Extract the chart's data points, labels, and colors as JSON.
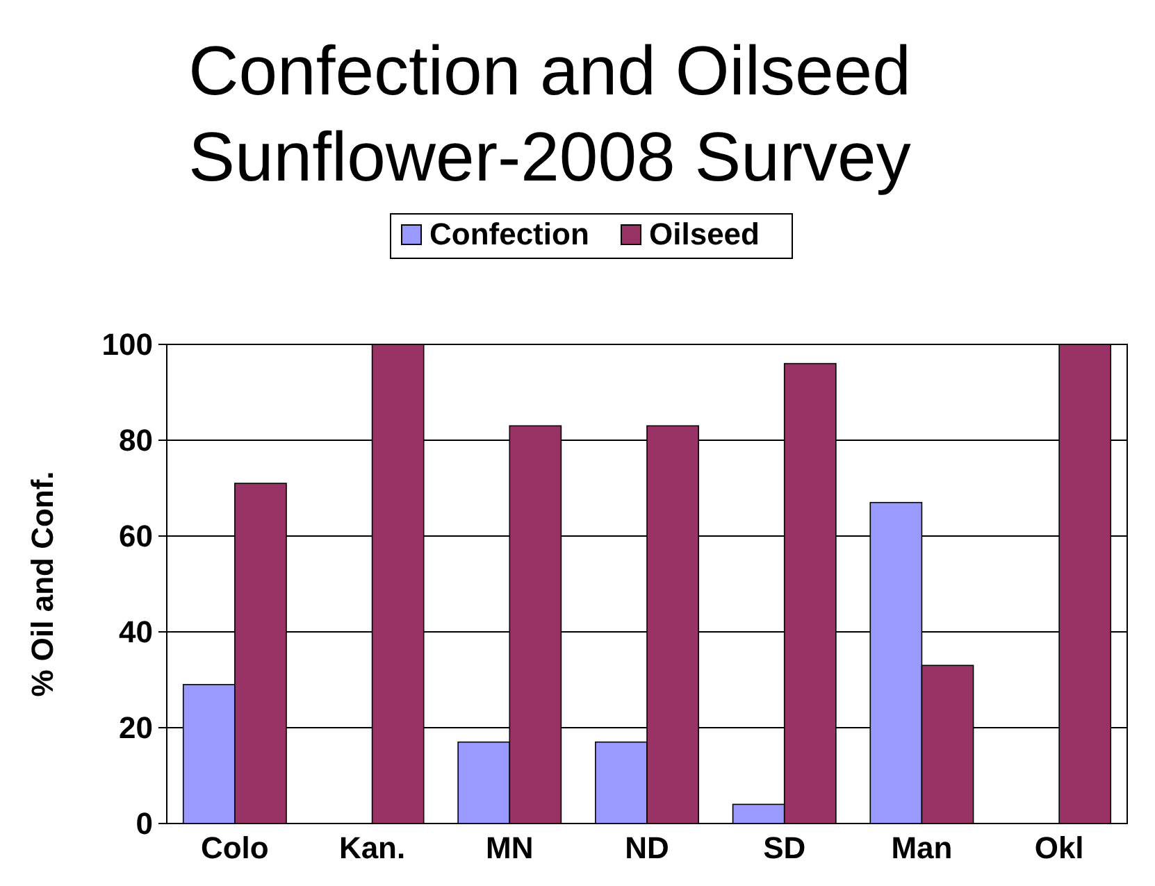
{
  "chart_data": {
    "type": "bar",
    "title": "Confection and Oilseed\nSunflower-2008 Survey",
    "ylabel": "% Oil and Conf.",
    "categories": [
      "Colo",
      "Kan.",
      "MN",
      "ND",
      "SD",
      "Man",
      "Okl"
    ],
    "series": [
      {
        "name": "Confection",
        "color": "#9999ff",
        "values": [
          29,
          0,
          17,
          17,
          4,
          67,
          0
        ]
      },
      {
        "name": "Oilseed",
        "color": "#993366",
        "values": [
          71,
          100,
          83,
          83,
          96,
          33,
          100
        ]
      }
    ],
    "ylim": [
      0,
      100
    ],
    "yticks": [
      0,
      20,
      40,
      60,
      80,
      100
    ],
    "grid": "y",
    "legend": "top"
  }
}
